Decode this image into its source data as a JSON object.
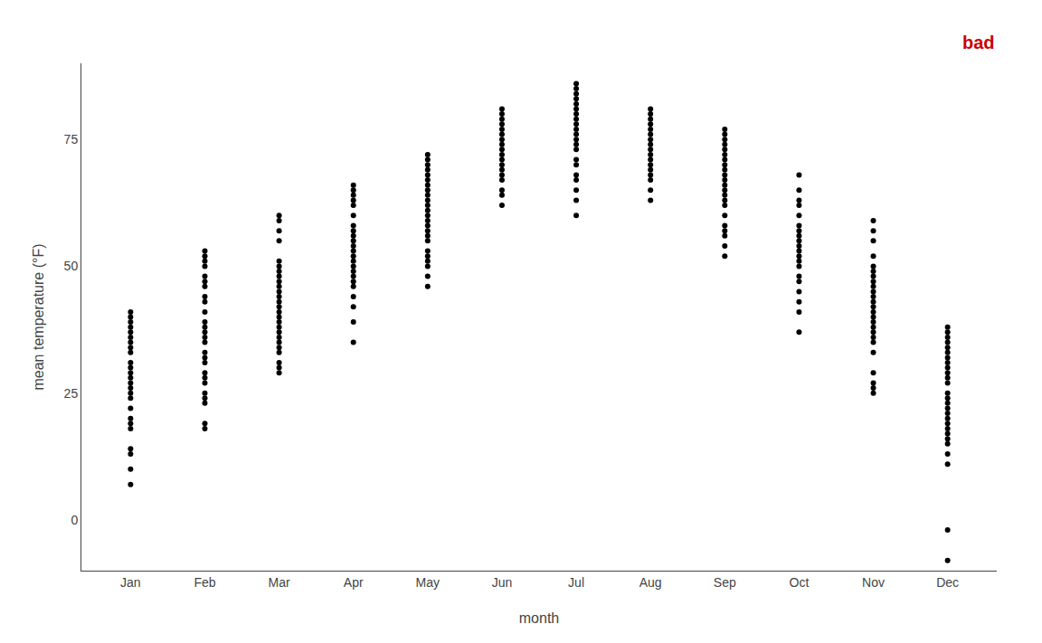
{
  "chart_data": {
    "type": "strip",
    "xlabel": "month",
    "ylabel": "mean temperature (°F)",
    "categories": [
      "Jan",
      "Feb",
      "Mar",
      "Apr",
      "May",
      "Jun",
      "Jul",
      "Aug",
      "Sep",
      "Oct",
      "Nov",
      "Dec"
    ],
    "values": [
      [
        7,
        10,
        13,
        14,
        18,
        19,
        20,
        22,
        24,
        25,
        26,
        27,
        28,
        29,
        30,
        31,
        33,
        34,
        35,
        36,
        37,
        38,
        39,
        40,
        41
      ],
      [
        18,
        19,
        23,
        24,
        25,
        27,
        28,
        29,
        31,
        32,
        33,
        35,
        36,
        37,
        38,
        39,
        41,
        43,
        44,
        46,
        47,
        48,
        50,
        51,
        52,
        53
      ],
      [
        29,
        30,
        31,
        33,
        34,
        35,
        36,
        37,
        38,
        39,
        40,
        41,
        42,
        43,
        44,
        45,
        46,
        47,
        48,
        49,
        50,
        51,
        55,
        57,
        59,
        60
      ],
      [
        35,
        39,
        42,
        44,
        46,
        47,
        48,
        49,
        50,
        51,
        52,
        53,
        54,
        55,
        56,
        57,
        58,
        60,
        62,
        63,
        64,
        65,
        66
      ],
      [
        46,
        48,
        50,
        51,
        52,
        53,
        55,
        56,
        57,
        58,
        59,
        60,
        61,
        62,
        63,
        64,
        65,
        66,
        67,
        68,
        69,
        70,
        71,
        72
      ],
      [
        62,
        64,
        65,
        67,
        68,
        69,
        70,
        71,
        72,
        73,
        74,
        75,
        76,
        77,
        78,
        79,
        80,
        81
      ],
      [
        60,
        63,
        65,
        67,
        68,
        70,
        71,
        73,
        74,
        75,
        76,
        77,
        78,
        79,
        80,
        81,
        82,
        83,
        84,
        85,
        86
      ],
      [
        63,
        65,
        67,
        68,
        69,
        70,
        71,
        72,
        73,
        74,
        75,
        76,
        77,
        78,
        79,
        80,
        81
      ],
      [
        52,
        54,
        56,
        57,
        58,
        60,
        62,
        63,
        64,
        65,
        66,
        67,
        68,
        69,
        70,
        71,
        72,
        73,
        74,
        75,
        76,
        77
      ],
      [
        37,
        41,
        43,
        45,
        47,
        48,
        50,
        51,
        52,
        53,
        54,
        55,
        56,
        57,
        58,
        60,
        62,
        63,
        65,
        68
      ],
      [
        25,
        26,
        27,
        29,
        33,
        35,
        36,
        37,
        38,
        39,
        40,
        41,
        42,
        43,
        44,
        45,
        46,
        47,
        48,
        49,
        50,
        52,
        55,
        57,
        59
      ],
      [
        -8,
        -2,
        11,
        13,
        15,
        16,
        17,
        18,
        19,
        20,
        21,
        22,
        23,
        24,
        25,
        27,
        28,
        29,
        30,
        31,
        32,
        33,
        34,
        35,
        36,
        37,
        38
      ]
    ],
    "color": "#000000",
    "ylim": [
      -10,
      90
    ],
    "yticks": [
      0,
      25,
      50,
      75
    ],
    "grid": false,
    "annotations": [
      {
        "text": "bad",
        "color": "#cc0000"
      }
    ]
  }
}
